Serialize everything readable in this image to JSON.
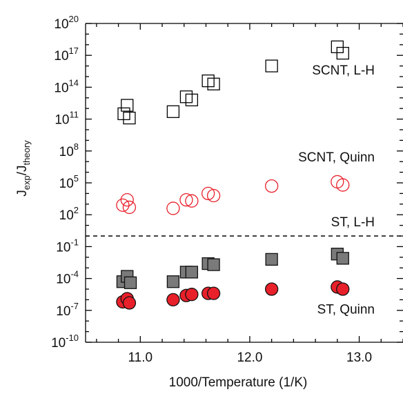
{
  "chart_data": {
    "type": "scatter",
    "title": "",
    "xlabel": "1000/Temperature (1/K)",
    "ylabel": {
      "base": "J",
      "sub1": "exp",
      "slash": "/J",
      "sub2": "theory"
    },
    "xlim": [
      10.5,
      13.4
    ],
    "ylim_log10": [
      -10,
      20
    ],
    "y_scale": "log",
    "grid": false,
    "x_ticks": [
      {
        "value": 11.0,
        "label": "11.0"
      },
      {
        "value": 12.0,
        "label": "12.0"
      },
      {
        "value": 13.0,
        "label": "13.0"
      }
    ],
    "y_ticks": [
      {
        "exp": 20,
        "base": "10",
        "sup": "20"
      },
      {
        "exp": 17,
        "base": "10",
        "sup": "17"
      },
      {
        "exp": 14,
        "base": "10",
        "sup": "14"
      },
      {
        "exp": 11,
        "base": "10",
        "sup": "11"
      },
      {
        "exp": 8,
        "base": "10",
        "sup": "8"
      },
      {
        "exp": 5,
        "base": "10",
        "sup": "5"
      },
      {
        "exp": 2,
        "base": "10",
        "sup": "2"
      },
      {
        "exp": -1,
        "base": "10",
        "sup": "-1"
      },
      {
        "exp": -4,
        "base": "10",
        "sup": "-4"
      },
      {
        "exp": -7,
        "base": "10",
        "sup": "-7"
      },
      {
        "exp": -10,
        "base": "10",
        "sup": "-10"
      }
    ],
    "divider_log10": 0,
    "annotations": [
      {
        "text": "SCNT, L-H",
        "series": "SCNT, L-H"
      },
      {
        "text": "SCNT, Quinn",
        "series": "SCNT, Quinn"
      },
      {
        "text": "ST, L-H",
        "series": "ST, L-H"
      },
      {
        "text": "ST, Quinn",
        "series": "ST, Quinn"
      }
    ],
    "series": [
      {
        "name": "SCNT, L-H",
        "marker": "square",
        "filled": false,
        "color": "#000000",
        "x": [
          10.85,
          10.88,
          10.9,
          11.3,
          11.42,
          11.47,
          11.62,
          11.67,
          12.2,
          12.8,
          12.85
        ],
        "log10_y": [
          11.5,
          12.3,
          11.1,
          11.7,
          13.1,
          12.8,
          14.6,
          14.3,
          16.0,
          17.8,
          17.2
        ]
      },
      {
        "name": "SCNT, Quinn",
        "marker": "circle",
        "filled": false,
        "color": "#e8202a",
        "x": [
          10.84,
          10.88,
          10.9,
          11.3,
          11.42,
          11.47,
          11.62,
          11.67,
          12.2,
          12.8,
          12.85
        ],
        "log10_y": [
          2.9,
          3.4,
          2.7,
          2.6,
          3.4,
          3.3,
          4.0,
          3.8,
          4.7,
          5.1,
          4.8
        ]
      },
      {
        "name": "ST, L-H",
        "marker": "square",
        "filled": true,
        "color": "#7a7a7a",
        "x": [
          10.84,
          10.88,
          10.91,
          11.3,
          11.42,
          11.47,
          11.62,
          11.67,
          12.2,
          12.8,
          12.85
        ],
        "log10_y": [
          -4.3,
          -3.8,
          -4.4,
          -4.3,
          -3.4,
          -3.4,
          -2.6,
          -2.7,
          -2.2,
          -1.7,
          -2.1
        ]
      },
      {
        "name": "ST, Quinn",
        "marker": "circle",
        "filled": true,
        "color": "#e8202a",
        "x": [
          10.84,
          10.88,
          10.9,
          11.3,
          11.42,
          11.47,
          11.62,
          11.67,
          12.2,
          12.8,
          12.85
        ],
        "log10_y": [
          -6.2,
          -5.9,
          -6.3,
          -6.0,
          -5.6,
          -5.5,
          -5.4,
          -5.4,
          -5.0,
          -4.8,
          -5.0
        ]
      }
    ],
    "colors": {
      "axis": "#000000",
      "red": "#e8202a",
      "gray_fill": "#7a7a7a"
    }
  }
}
